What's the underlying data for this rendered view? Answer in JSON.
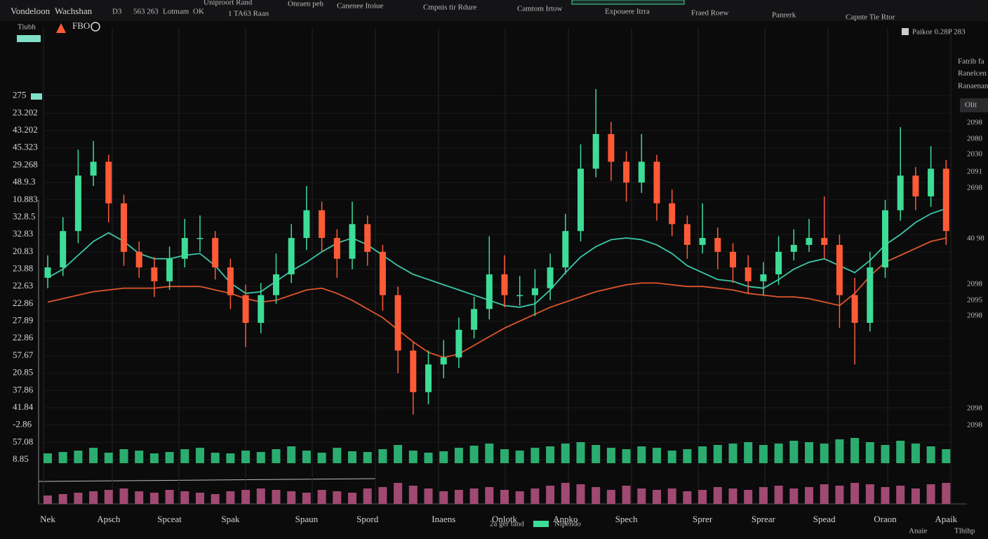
{
  "toolbar": {
    "items": [
      "Vondeloon",
      "Wachshan",
      "D3",
      "563 263",
      "Lotmam",
      "OK",
      "Uniproort Rand",
      "1  TA63 Raan",
      "Onraen peh",
      "Canenee Itoiue",
      "Cmpnis tir Rdure",
      "Camtom Irtow",
      "Expouere Itrra",
      "Fraed Roew",
      "Panrerk",
      "Capnte Tie Rtor"
    ],
    "row2": [
      "Tiubh",
      "FBO"
    ],
    "top_right": "Paikor  0.28P 283"
  },
  "side_panel": {
    "labels": [
      "Fatrib fa",
      "Ranelcen",
      "Ranaenan",
      "Olit",
      "2098",
      "2080",
      "2030",
      "2091",
      "2698",
      "40 98",
      "2098",
      "2095",
      "2098",
      "2098",
      "2098"
    ],
    "footer": [
      "Anaie",
      "Tlhihp"
    ]
  },
  "legend": {
    "note": "2a ger tand",
    "item": "Nipendo",
    "color": "#3ddc97"
  },
  "chart_data": {
    "type": "candlestick",
    "categories": [
      "Nek",
      null,
      null,
      null,
      "Apsch",
      null,
      null,
      null,
      "Spceat",
      null,
      null,
      null,
      "Spak",
      null,
      null,
      null,
      null,
      "Spaun",
      null,
      null,
      null,
      "Spord",
      null,
      null,
      null,
      null,
      "Inaens",
      null,
      null,
      null,
      "Onlotk",
      null,
      null,
      null,
      "Anpko",
      null,
      null,
      null,
      "Spech",
      null,
      null,
      null,
      null,
      "Sprer",
      null,
      null,
      null,
      "Sprear",
      null,
      null,
      null,
      "Spead",
      null,
      null,
      null,
      "Oraon",
      null,
      null,
      null,
      "Apaik"
    ],
    "open": [
      10.5,
      11.1,
      13.2,
      16.4,
      17.2,
      14.8,
      12.0,
      11.1,
      10.3,
      11.6,
      12.8,
      12.8,
      11.1,
      9.5,
      7.9,
      9.5,
      10.7,
      12.8,
      14.4,
      12.8,
      11.6,
      13.6,
      12.0,
      9.5,
      6.3,
      3.9,
      5.5,
      5.9,
      7.5,
      8.7,
      10.7,
      9.5,
      9.5,
      9.9,
      11.1,
      13.2,
      16.8,
      18.8,
      17.2,
      16.0,
      17.2,
      14.8,
      13.6,
      12.4,
      12.8,
      12.0,
      11.1,
      10.3,
      10.7,
      12.0,
      12.4,
      12.8,
      12.4,
      9.5,
      7.9,
      11.1,
      14.4,
      16.4,
      15.2,
      16.8
    ],
    "high": [
      11.8,
      14.0,
      17.9,
      18.4,
      17.6,
      15.3,
      12.6,
      11.7,
      12.3,
      13.9,
      14.1,
      13.2,
      11.6,
      10.1,
      10.2,
      11.9,
      13.6,
      15.8,
      14.9,
      13.3,
      14.9,
      14.1,
      12.4,
      10.0,
      6.8,
      6.3,
      6.9,
      8.2,
      9.4,
      12.9,
      11.8,
      10.6,
      11.0,
      11.9,
      14.2,
      18.2,
      21.4,
      19.5,
      17.8,
      18.8,
      17.6,
      15.6,
      14.1,
      14.8,
      13.4,
      12.5,
      11.8,
      11.4,
      12.9,
      13.3,
      13.9,
      15.2,
      13.0,
      10.5,
      12.0,
      15.0,
      19.2,
      16.9,
      18.1,
      17.3
    ],
    "low": [
      9.9,
      10.6,
      12.5,
      15.8,
      13.7,
      11.2,
      10.5,
      9.4,
      9.8,
      11.1,
      12.0,
      10.4,
      8.7,
      6.5,
      7.3,
      9.0,
      10.2,
      12.1,
      12.0,
      10.5,
      11.0,
      11.2,
      8.6,
      5.0,
      2.6,
      3.2,
      4.7,
      5.3,
      7.0,
      8.1,
      8.8,
      8.9,
      8.3,
      9.2,
      10.7,
      12.6,
      16.3,
      16.1,
      14.9,
      15.4,
      13.8,
      12.9,
      11.6,
      11.9,
      11.0,
      10.2,
      9.6,
      9.5,
      10.1,
      11.5,
      12.0,
      11.6,
      7.6,
      5.5,
      7.4,
      10.5,
      13.8,
      14.4,
      14.6,
      12.4
    ],
    "close": [
      11.1,
      13.2,
      16.4,
      17.2,
      14.8,
      12.0,
      11.1,
      10.3,
      11.6,
      12.8,
      12.8,
      11.1,
      9.5,
      7.9,
      9.5,
      10.7,
      12.8,
      14.4,
      12.8,
      11.6,
      13.6,
      12.0,
      9.5,
      6.3,
      3.9,
      5.5,
      5.9,
      7.5,
      8.7,
      10.7,
      9.5,
      9.5,
      9.9,
      11.1,
      13.2,
      16.8,
      18.8,
      17.2,
      16.0,
      17.2,
      14.8,
      13.6,
      12.4,
      12.8,
      12.0,
      11.1,
      10.3,
      10.7,
      12.0,
      12.4,
      12.8,
      12.4,
      9.5,
      7.9,
      11.1,
      14.4,
      16.4,
      15.2,
      16.8,
      13.2
    ],
    "up_color": "#3ddc97",
    "down_color": "#ff5a36",
    "lines": [
      {
        "color": "#3cc7a8",
        "values": [
          10.5,
          11.0,
          11.8,
          12.6,
          13.1,
          12.6,
          11.9,
          11.6,
          11.6,
          11.8,
          11.9,
          11.2,
          10.2,
          9.6,
          9.7,
          10.3,
          10.9,
          11.4,
          12.0,
          12.5,
          12.8,
          12.4,
          11.8,
          11.2,
          10.7,
          10.4,
          10.1,
          9.8,
          9.5,
          9.2,
          8.9,
          8.8,
          9.0,
          9.8,
          10.8,
          11.7,
          12.3,
          12.7,
          12.8,
          12.7,
          12.4,
          11.9,
          11.2,
          10.8,
          10.4,
          10.3,
          10.0,
          9.9,
          10.4,
          11.0,
          11.4,
          11.6,
          11.2,
          10.8,
          11.5,
          12.4,
          13.0,
          13.7,
          14.2,
          14.5
        ]
      },
      {
        "color": "#e0552b",
        "values": [
          9.1,
          9.3,
          9.5,
          9.7,
          9.8,
          9.9,
          9.9,
          9.9,
          10.0,
          10.0,
          10.0,
          9.8,
          9.6,
          9.3,
          9.1,
          9.2,
          9.5,
          9.8,
          9.9,
          9.6,
          9.2,
          8.7,
          8.2,
          7.5,
          6.8,
          6.2,
          5.9,
          6.1,
          6.6,
          7.1,
          7.6,
          8.0,
          8.4,
          8.8,
          9.1,
          9.4,
          9.7,
          9.9,
          10.1,
          10.2,
          10.2,
          10.1,
          10.0,
          10.0,
          9.9,
          9.8,
          9.6,
          9.5,
          9.4,
          9.4,
          9.3,
          9.1,
          8.9,
          9.6,
          10.6,
          11.4,
          11.8,
          12.2,
          12.6,
          12.8
        ]
      }
    ],
    "volume": {
      "color": "#2fbf7a",
      "values": [
        14,
        16,
        18,
        22,
        15,
        20,
        18,
        14,
        16,
        20,
        22,
        15,
        14,
        18,
        16,
        20,
        24,
        18,
        15,
        22,
        17,
        16,
        20,
        26,
        18,
        15,
        17,
        22,
        25,
        28,
        20,
        18,
        22,
        24,
        28,
        30,
        26,
        22,
        20,
        24,
        22,
        18,
        20,
        24,
        26,
        28,
        30,
        26,
        28,
        32,
        30,
        28,
        34,
        36,
        30,
        26,
        32,
        28,
        24,
        20
      ]
    },
    "volume2": {
      "color": "#b0507c",
      "values": [
        12,
        14,
        16,
        18,
        20,
        22,
        18,
        16,
        20,
        18,
        16,
        14,
        18,
        20,
        22,
        20,
        18,
        16,
        20,
        18,
        16,
        22,
        24,
        30,
        26,
        22,
        18,
        20,
        22,
        24,
        20,
        18,
        22,
        26,
        30,
        28,
        24,
        20,
        26,
        22,
        20,
        22,
        18,
        20,
        24,
        22,
        20,
        24,
        26,
        22,
        24,
        28,
        26,
        30,
        28,
        24,
        26,
        22,
        28,
        30
      ]
    },
    "ylim": [
      0,
      22
    ],
    "yticks": [
      {
        "value": 21,
        "label": "275"
      },
      {
        "value": 20,
        "label": "23.202"
      },
      {
        "value": 19,
        "label": "43.202"
      },
      {
        "value": 18,
        "label": "45.323"
      },
      {
        "value": 17,
        "label": "29.268"
      },
      {
        "value": 16,
        "label": "48.9.3"
      },
      {
        "value": 15,
        "label": "10.883"
      },
      {
        "value": 14,
        "label": "32.8.5"
      },
      {
        "value": 13,
        "label": "32.83"
      },
      {
        "value": 12,
        "label": "20.83"
      },
      {
        "value": 11,
        "label": "23.88"
      },
      {
        "value": 10,
        "label": "22.63"
      },
      {
        "value": 9,
        "label": "22.86"
      },
      {
        "value": 8,
        "label": "27.89"
      },
      {
        "value": 7,
        "label": "22.86"
      },
      {
        "value": 6,
        "label": "57.67"
      },
      {
        "value": 5,
        "label": "20.85"
      },
      {
        "value": 4,
        "label": "37.86"
      },
      {
        "value": 3,
        "label": "41.84"
      },
      {
        "value": 2,
        "label": "-2.86"
      },
      {
        "value": 1,
        "label": "57.08"
      },
      {
        "value": 0,
        "label": "8.85"
      }
    ],
    "grid": true
  }
}
